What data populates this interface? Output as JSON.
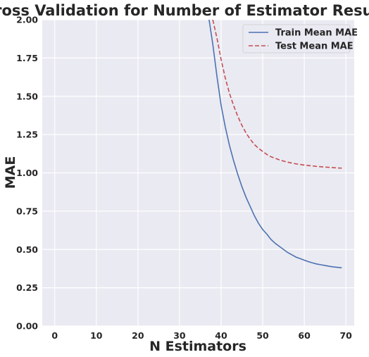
{
  "chart_data": {
    "type": "line",
    "title": "Cross Validation for Number of Estimator Results",
    "xlabel": "N Estimators",
    "ylabel": "MAE",
    "xlim": [
      -3,
      72
    ],
    "ylim": [
      0,
      2.0
    ],
    "xticks": [
      0,
      10,
      20,
      30,
      40,
      50,
      60,
      70
    ],
    "yticks": [
      0.0,
      0.25,
      0.5,
      0.75,
      1.0,
      1.25,
      1.5,
      1.75,
      2.0
    ],
    "ytick_labels": [
      "0.00",
      "0.25",
      "0.50",
      "0.75",
      "1.00",
      "1.25",
      "1.50",
      "1.75",
      "2.00"
    ],
    "grid": true,
    "legend_position": "top-right",
    "background_color": "#eaeaf2",
    "grid_color": "#ffffff",
    "series": [
      {
        "name": "Train Mean MAE",
        "color": "#4c72b0",
        "linestyle": "solid",
        "x": [
          37,
          38,
          39,
          40,
          41,
          42,
          43,
          44,
          45,
          46,
          47,
          48,
          49,
          50,
          51,
          52,
          53,
          54,
          55,
          56,
          57,
          58,
          59,
          60,
          61,
          62,
          63,
          64,
          65,
          66,
          67,
          68,
          69
        ],
        "y": [
          2.02,
          1.84,
          1.63,
          1.44,
          1.3,
          1.18,
          1.08,
          0.99,
          0.91,
          0.84,
          0.78,
          0.72,
          0.67,
          0.63,
          0.6,
          0.565,
          0.54,
          0.52,
          0.5,
          0.48,
          0.465,
          0.45,
          0.44,
          0.43,
          0.42,
          0.412,
          0.405,
          0.4,
          0.395,
          0.39,
          0.386,
          0.383,
          0.38
        ]
      },
      {
        "name": "Test Mean MAE",
        "color": "#c44e52",
        "linestyle": "dashed",
        "x": [
          38,
          39,
          40,
          41,
          42,
          43,
          44,
          45,
          46,
          47,
          48,
          49,
          50,
          51,
          52,
          53,
          54,
          55,
          56,
          57,
          58,
          59,
          60,
          61,
          62,
          63,
          64,
          65,
          66,
          67,
          68,
          69
        ],
        "y": [
          2.0,
          1.88,
          1.74,
          1.62,
          1.52,
          1.44,
          1.37,
          1.31,
          1.26,
          1.22,
          1.185,
          1.16,
          1.14,
          1.12,
          1.105,
          1.095,
          1.085,
          1.077,
          1.07,
          1.064,
          1.059,
          1.055,
          1.051,
          1.048,
          1.045,
          1.042,
          1.04,
          1.038,
          1.036,
          1.034,
          1.032,
          1.031
        ]
      }
    ]
  }
}
